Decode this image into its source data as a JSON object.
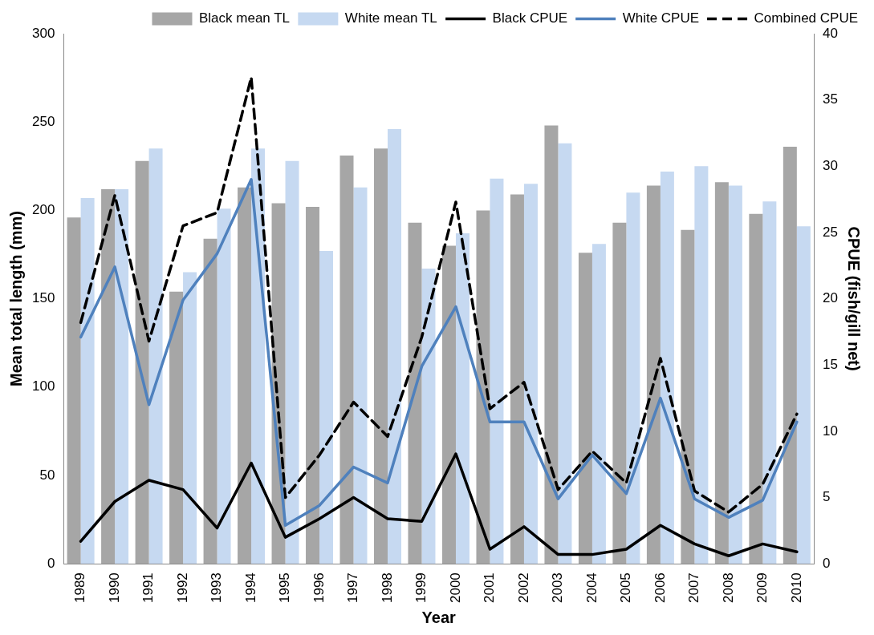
{
  "chart_data": {
    "type": "bar",
    "xlabel": "Year",
    "ylabel": "Mean total length (mm)",
    "y2label": "CPUE (fish/gill net)",
    "categories": [
      "1989",
      "1990",
      "1991",
      "1992",
      "1993",
      "1994",
      "1995",
      "1996",
      "1997",
      "1998",
      "1999",
      "2000",
      "2001",
      "2002",
      "2003",
      "2004",
      "2005",
      "2006",
      "2007",
      "2008",
      "2009",
      "2010"
    ],
    "series": [
      {
        "name": "Black mean TL",
        "color": "#a6a6a6",
        "values": [
          196,
          212,
          228,
          154,
          184,
          213,
          204,
          202,
          231,
          235,
          193,
          180,
          200,
          209,
          248,
          176,
          193,
          214,
          189,
          216,
          198,
          236
        ]
      },
      {
        "name": "White mean TL",
        "color": "#c6d9f1",
        "values": [
          207,
          212,
          235,
          165,
          201,
          235,
          228,
          177,
          213,
          246,
          167,
          187,
          218,
          215,
          238,
          181,
          210,
          222,
          225,
          214,
          205,
          191
        ]
      },
      {
        "name": "Black CPUE",
        "type": "line",
        "axis": "y2",
        "color": "#000000",
        "line_style": "solid",
        "values": [
          1.7,
          4.7,
          6.3,
          5.6,
          2.7,
          7.6,
          2.0,
          3.4,
          5.0,
          3.4,
          3.2,
          8.3,
          1.1,
          2.8,
          0.7,
          0.7,
          1.1,
          2.9,
          1.5,
          0.6,
          1.5,
          0.9
        ]
      },
      {
        "name": "White CPUE",
        "type": "line",
        "axis": "y2",
        "color": "#4f81bd",
        "line_style": "solid",
        "values": [
          17.1,
          22.4,
          12.0,
          19.9,
          23.4,
          29.0,
          2.9,
          4.4,
          7.3,
          6.1,
          14.9,
          19.4,
          10.7,
          10.7,
          4.9,
          8.2,
          5.3,
          12.5,
          4.9,
          3.5,
          4.8,
          10.7
        ]
      },
      {
        "name": "Combined CPUE",
        "type": "line",
        "axis": "y2",
        "color": "#000000",
        "line_style": "dashed",
        "values": [
          18.2,
          27.8,
          16.8,
          25.5,
          26.5,
          36.7,
          5.0,
          8.2,
          12.2,
          9.6,
          17.1,
          27.3,
          11.7,
          13.7,
          5.6,
          8.5,
          6.1,
          15.5,
          5.5,
          3.9,
          6.0,
          11.3
        ]
      }
    ],
    "ylim": [
      0,
      300
    ],
    "yticks": [
      0,
      50,
      100,
      150,
      200,
      250,
      300
    ],
    "y2lim": [
      0,
      40
    ],
    "y2ticks": [
      0,
      5,
      10,
      15,
      20,
      25,
      30,
      35,
      40
    ],
    "grid": false,
    "legend": "top right",
    "marker": "none"
  }
}
